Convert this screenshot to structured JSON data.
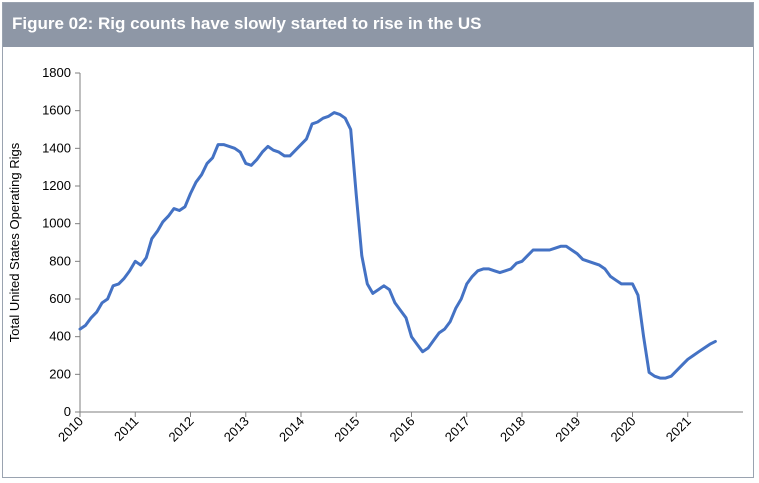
{
  "title": "Figure 02: Rig counts have slowly started to rise in the US",
  "colors": {
    "header": "#8e97a6",
    "line": "#4472c4",
    "axis": "#7f7f7f"
  },
  "chart_data": {
    "type": "line",
    "title": "Figure 02: Rig counts have slowly started to rise in the US",
    "xlabel": "",
    "ylabel": "Total United States Operating Rigs",
    "xlim": [
      2010,
      2022
    ],
    "ylim": [
      0,
      1800
    ],
    "yticks": [
      0,
      200,
      400,
      600,
      800,
      1000,
      1200,
      1400,
      1600,
      1800
    ],
    "xticks": [
      "2010",
      "2011",
      "2012",
      "2013",
      "2014",
      "2015",
      "2016",
      "2017",
      "2018",
      "2019",
      "2020",
      "2021"
    ],
    "grid": false,
    "legend": "none",
    "series": [
      {
        "x": [
          2010.0,
          2010.1,
          2010.2,
          2010.3,
          2010.4,
          2010.5,
          2010.6,
          2010.7,
          2010.8,
          2010.9,
          2011.0,
          2011.05,
          2011.1,
          2011.2,
          2011.3,
          2011.4,
          2011.5,
          2011.6,
          2011.7,
          2011.8,
          2011.9,
          2012.0,
          2012.1,
          2012.2,
          2012.3,
          2012.4,
          2012.5,
          2012.6,
          2012.7,
          2012.8,
          2012.9,
          2013.0,
          2013.1,
          2013.2,
          2013.3,
          2013.4,
          2013.5,
          2013.6,
          2013.7,
          2013.8,
          2013.9,
          2014.0,
          2014.1,
          2014.2,
          2014.3,
          2014.4,
          2014.5,
          2014.6,
          2014.7,
          2014.8,
          2014.9,
          2015.0,
          2015.1,
          2015.2,
          2015.3,
          2015.4,
          2015.5,
          2015.6,
          2015.7,
          2015.8,
          2015.9,
          2016.0,
          2016.1,
          2016.2,
          2016.3,
          2016.4,
          2016.5,
          2016.6,
          2016.7,
          2016.8,
          2016.9,
          2017.0,
          2017.1,
          2017.2,
          2017.3,
          2017.4,
          2017.5,
          2017.6,
          2017.7,
          2017.8,
          2017.9,
          2018.0,
          2018.1,
          2018.2,
          2018.3,
          2018.4,
          2018.5,
          2018.6,
          2018.7,
          2018.8,
          2018.9,
          2019.0,
          2019.1,
          2019.2,
          2019.3,
          2019.4,
          2019.5,
          2019.6,
          2019.7,
          2019.8,
          2019.9,
          2020.0,
          2020.1,
          2020.2,
          2020.3,
          2020.4,
          2020.5,
          2020.6,
          2020.7,
          2020.8,
          2020.9,
          2021.0,
          2021.1,
          2021.2,
          2021.3,
          2021.4,
          2021.5
        ],
        "values": [
          440,
          460,
          500,
          530,
          580,
          600,
          670,
          680,
          710,
          750,
          800,
          790,
          780,
          820,
          920,
          960,
          1010,
          1040,
          1080,
          1070,
          1090,
          1160,
          1220,
          1260,
          1320,
          1350,
          1420,
          1420,
          1410,
          1400,
          1380,
          1320,
          1310,
          1340,
          1380,
          1410,
          1390,
          1380,
          1360,
          1360,
          1390,
          1420,
          1450,
          1530,
          1540,
          1560,
          1570,
          1590,
          1580,
          1560,
          1500,
          1150,
          830,
          680,
          630,
          650,
          670,
          650,
          580,
          540,
          500,
          400,
          360,
          320,
          340,
          380,
          420,
          440,
          480,
          550,
          600,
          680,
          720,
          750,
          760,
          760,
          750,
          740,
          750,
          760,
          790,
          800,
          830,
          860,
          860,
          860,
          860,
          870,
          880,
          880,
          860,
          840,
          810,
          800,
          790,
          780,
          760,
          720,
          700,
          680,
          680,
          680,
          620,
          400,
          210,
          190,
          180,
          180,
          190,
          220,
          250,
          280,
          300,
          320,
          340,
          360,
          375
        ]
      }
    ]
  }
}
